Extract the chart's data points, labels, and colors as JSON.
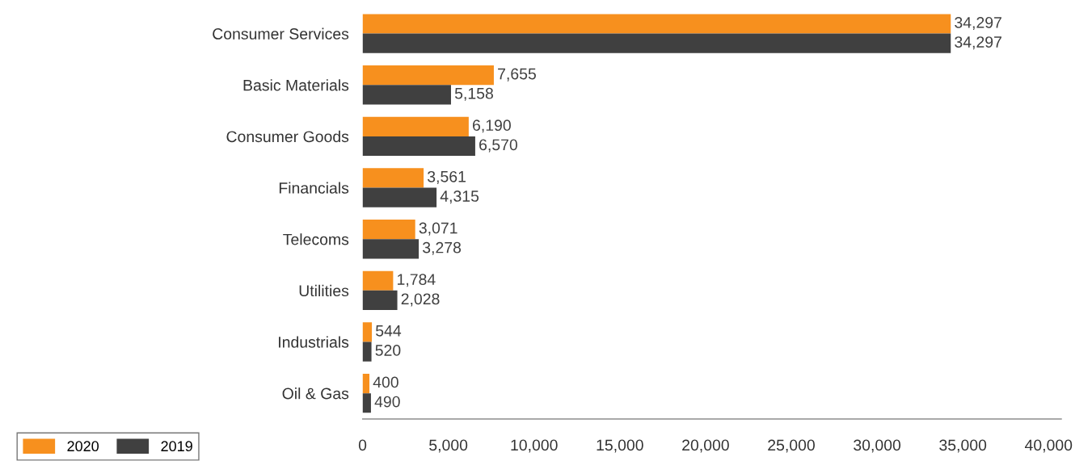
{
  "chart_data": {
    "type": "bar",
    "orientation": "horizontal",
    "categories": [
      "Consumer Services",
      "Basic Materials",
      "Consumer Goods",
      "Financials",
      "Telecoms",
      "Utilities",
      "Industrials",
      "Oil & Gas"
    ],
    "series": [
      {
        "name": "2020",
        "color": "#f7901e",
        "values": [
          34297,
          7655,
          6190,
          3561,
          3071,
          1784,
          544,
          400
        ],
        "value_labels": [
          "34,297",
          "7,655",
          "6,190",
          "3,561",
          "3,071",
          "1,784",
          "544",
          "400"
        ]
      },
      {
        "name": "2019",
        "color": "#404040",
        "values": [
          34297,
          5158,
          6570,
          4315,
          3278,
          2028,
          520,
          490
        ],
        "value_labels": [
          "34,297",
          "5,158",
          "6,570",
          "4,315",
          "3,278",
          "2,028",
          "520",
          "490"
        ]
      }
    ],
    "xlim": [
      0,
      40750
    ],
    "xticks": [
      {
        "value": 0,
        "label": "0"
      },
      {
        "value": 5000,
        "label": "5,000"
      },
      {
        "value": 10000,
        "label": "10,000"
      },
      {
        "value": 15000,
        "label": "15,000"
      },
      {
        "value": 20000,
        "label": "20,000"
      },
      {
        "value": 25000,
        "label": "25,000"
      },
      {
        "value": 30000,
        "label": "30,000"
      },
      {
        "value": 35000,
        "label": "35,000"
      },
      {
        "value": 40000,
        "label": "40,000"
      }
    ],
    "grid": false,
    "legend": "bottom left"
  }
}
